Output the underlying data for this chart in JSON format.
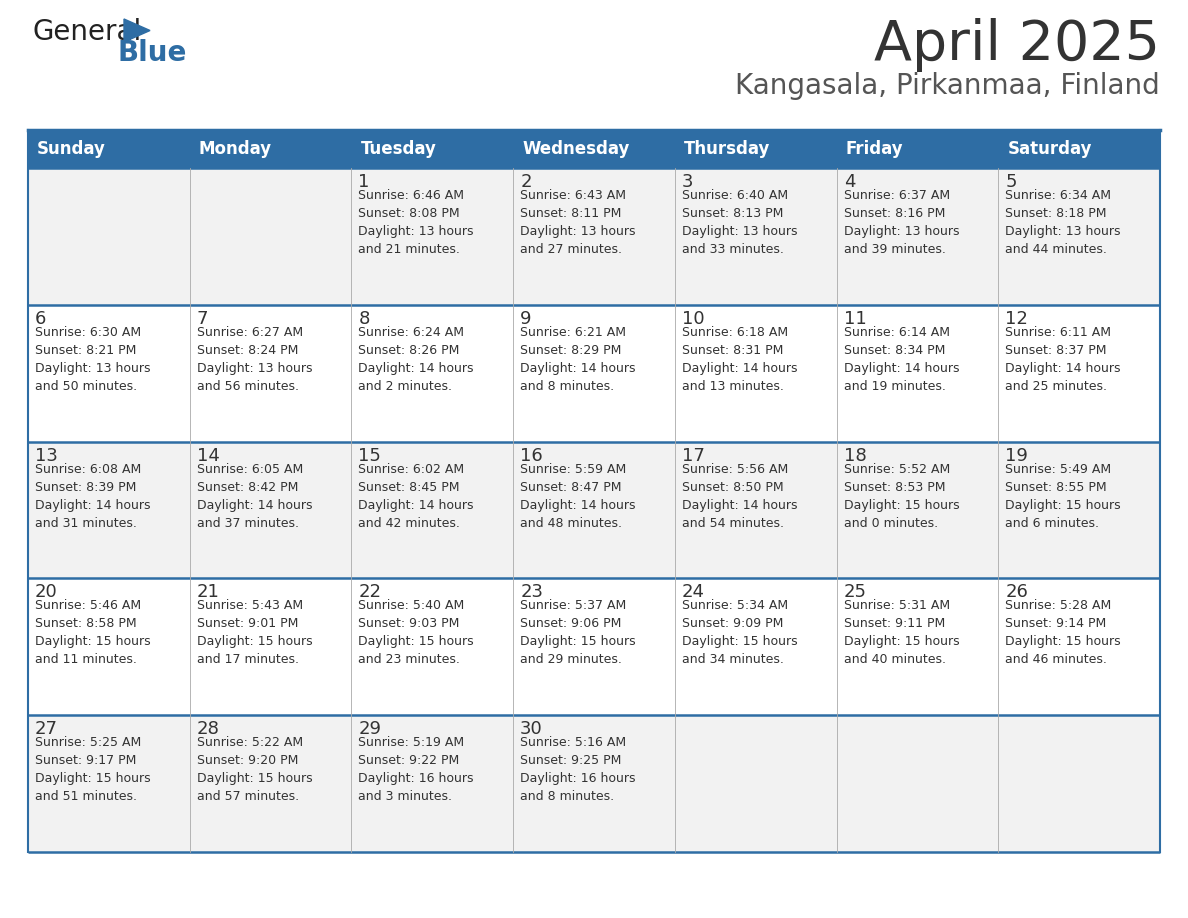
{
  "title": "April 2025",
  "subtitle": "Kangasala, Pirkanmaa, Finland",
  "days_of_week": [
    "Sunday",
    "Monday",
    "Tuesday",
    "Wednesday",
    "Thursday",
    "Friday",
    "Saturday"
  ],
  "header_bg": "#2E6DA4",
  "header_text": "#FFFFFF",
  "cell_bg_odd": "#F2F2F2",
  "cell_bg_even": "#FFFFFF",
  "border_color": "#2E6DA4",
  "divider_color": "#AAAAAA",
  "text_color": "#333333",
  "title_color": "#333333",
  "subtitle_color": "#555555",
  "weeks": [
    [
      {
        "day": null,
        "info": null
      },
      {
        "day": null,
        "info": null
      },
      {
        "day": 1,
        "info": "Sunrise: 6:46 AM\nSunset: 8:08 PM\nDaylight: 13 hours\nand 21 minutes."
      },
      {
        "day": 2,
        "info": "Sunrise: 6:43 AM\nSunset: 8:11 PM\nDaylight: 13 hours\nand 27 minutes."
      },
      {
        "day": 3,
        "info": "Sunrise: 6:40 AM\nSunset: 8:13 PM\nDaylight: 13 hours\nand 33 minutes."
      },
      {
        "day": 4,
        "info": "Sunrise: 6:37 AM\nSunset: 8:16 PM\nDaylight: 13 hours\nand 39 minutes."
      },
      {
        "day": 5,
        "info": "Sunrise: 6:34 AM\nSunset: 8:18 PM\nDaylight: 13 hours\nand 44 minutes."
      }
    ],
    [
      {
        "day": 6,
        "info": "Sunrise: 6:30 AM\nSunset: 8:21 PM\nDaylight: 13 hours\nand 50 minutes."
      },
      {
        "day": 7,
        "info": "Sunrise: 6:27 AM\nSunset: 8:24 PM\nDaylight: 13 hours\nand 56 minutes."
      },
      {
        "day": 8,
        "info": "Sunrise: 6:24 AM\nSunset: 8:26 PM\nDaylight: 14 hours\nand 2 minutes."
      },
      {
        "day": 9,
        "info": "Sunrise: 6:21 AM\nSunset: 8:29 PM\nDaylight: 14 hours\nand 8 minutes."
      },
      {
        "day": 10,
        "info": "Sunrise: 6:18 AM\nSunset: 8:31 PM\nDaylight: 14 hours\nand 13 minutes."
      },
      {
        "day": 11,
        "info": "Sunrise: 6:14 AM\nSunset: 8:34 PM\nDaylight: 14 hours\nand 19 minutes."
      },
      {
        "day": 12,
        "info": "Sunrise: 6:11 AM\nSunset: 8:37 PM\nDaylight: 14 hours\nand 25 minutes."
      }
    ],
    [
      {
        "day": 13,
        "info": "Sunrise: 6:08 AM\nSunset: 8:39 PM\nDaylight: 14 hours\nand 31 minutes."
      },
      {
        "day": 14,
        "info": "Sunrise: 6:05 AM\nSunset: 8:42 PM\nDaylight: 14 hours\nand 37 minutes."
      },
      {
        "day": 15,
        "info": "Sunrise: 6:02 AM\nSunset: 8:45 PM\nDaylight: 14 hours\nand 42 minutes."
      },
      {
        "day": 16,
        "info": "Sunrise: 5:59 AM\nSunset: 8:47 PM\nDaylight: 14 hours\nand 48 minutes."
      },
      {
        "day": 17,
        "info": "Sunrise: 5:56 AM\nSunset: 8:50 PM\nDaylight: 14 hours\nand 54 minutes."
      },
      {
        "day": 18,
        "info": "Sunrise: 5:52 AM\nSunset: 8:53 PM\nDaylight: 15 hours\nand 0 minutes."
      },
      {
        "day": 19,
        "info": "Sunrise: 5:49 AM\nSunset: 8:55 PM\nDaylight: 15 hours\nand 6 minutes."
      }
    ],
    [
      {
        "day": 20,
        "info": "Sunrise: 5:46 AM\nSunset: 8:58 PM\nDaylight: 15 hours\nand 11 minutes."
      },
      {
        "day": 21,
        "info": "Sunrise: 5:43 AM\nSunset: 9:01 PM\nDaylight: 15 hours\nand 17 minutes."
      },
      {
        "day": 22,
        "info": "Sunrise: 5:40 AM\nSunset: 9:03 PM\nDaylight: 15 hours\nand 23 minutes."
      },
      {
        "day": 23,
        "info": "Sunrise: 5:37 AM\nSunset: 9:06 PM\nDaylight: 15 hours\nand 29 minutes."
      },
      {
        "day": 24,
        "info": "Sunrise: 5:34 AM\nSunset: 9:09 PM\nDaylight: 15 hours\nand 34 minutes."
      },
      {
        "day": 25,
        "info": "Sunrise: 5:31 AM\nSunset: 9:11 PM\nDaylight: 15 hours\nand 40 minutes."
      },
      {
        "day": 26,
        "info": "Sunrise: 5:28 AM\nSunset: 9:14 PM\nDaylight: 15 hours\nand 46 minutes."
      }
    ],
    [
      {
        "day": 27,
        "info": "Sunrise: 5:25 AM\nSunset: 9:17 PM\nDaylight: 15 hours\nand 51 minutes."
      },
      {
        "day": 28,
        "info": "Sunrise: 5:22 AM\nSunset: 9:20 PM\nDaylight: 15 hours\nand 57 minutes."
      },
      {
        "day": 29,
        "info": "Sunrise: 5:19 AM\nSunset: 9:22 PM\nDaylight: 16 hours\nand 3 minutes."
      },
      {
        "day": 30,
        "info": "Sunrise: 5:16 AM\nSunset: 9:25 PM\nDaylight: 16 hours\nand 8 minutes."
      },
      {
        "day": null,
        "info": null
      },
      {
        "day": null,
        "info": null
      },
      {
        "day": null,
        "info": null
      }
    ]
  ]
}
